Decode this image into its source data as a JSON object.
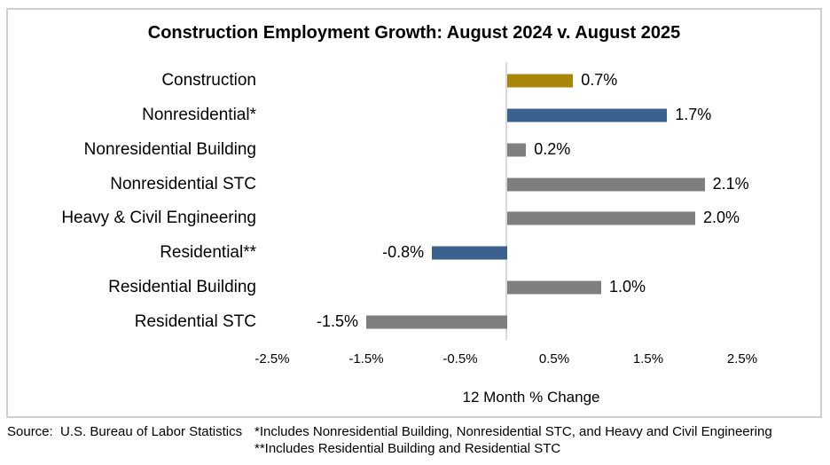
{
  "title": "Construction Employment Growth: August 2024 v. August 2025",
  "chart_data": {
    "type": "bar",
    "orientation": "horizontal",
    "title": "Construction Employment Growth: August 2024 v. August 2025",
    "categories": [
      "Construction",
      "Nonresidential*",
      "Nonresidential Building",
      "Nonresidential STC",
      "Heavy & Civil Engineering",
      "Residential**",
      "Residential Building",
      "Residential STC"
    ],
    "values": [
      0.7,
      1.7,
      0.2,
      2.1,
      2.0,
      -0.8,
      1.0,
      -1.5
    ],
    "value_labels": [
      "0.7%",
      "1.7%",
      "0.2%",
      "2.1%",
      "2.0%",
      "-0.8%",
      "1.0%",
      "-1.5%"
    ],
    "bar_colors": [
      "#a9860a",
      "#3a6090",
      "#7f7f7f",
      "#7f7f7f",
      "#7f7f7f",
      "#3a6090",
      "#7f7f7f",
      "#7f7f7f"
    ],
    "xlabel": "12 Month % Change",
    "ylabel": "",
    "x_tick_labels": [
      "-2.5%",
      "-1.5%",
      "-0.5%",
      "0.5%",
      "1.5%",
      "2.5%"
    ],
    "x_tick_values": [
      -2.5,
      -1.5,
      -0.5,
      0.5,
      1.5,
      2.5
    ],
    "xlim": [
      -3.0,
      3.0
    ],
    "grid": false,
    "legend": "none"
  },
  "colors": {
    "gold": "#a9860a",
    "blue": "#3a6090",
    "gray": "#7f7f7f",
    "axis_line": "#d9d9d9",
    "box_border": "#d0cece"
  },
  "footer": {
    "source": "Source:  U.S. Bureau of Labor Statistics",
    "footnote1": "*Includes Nonresidential Building, Nonresidential STC, and Heavy and Civil Engineering",
    "footnote2": "**Includes Residential Building and Residential STC"
  }
}
